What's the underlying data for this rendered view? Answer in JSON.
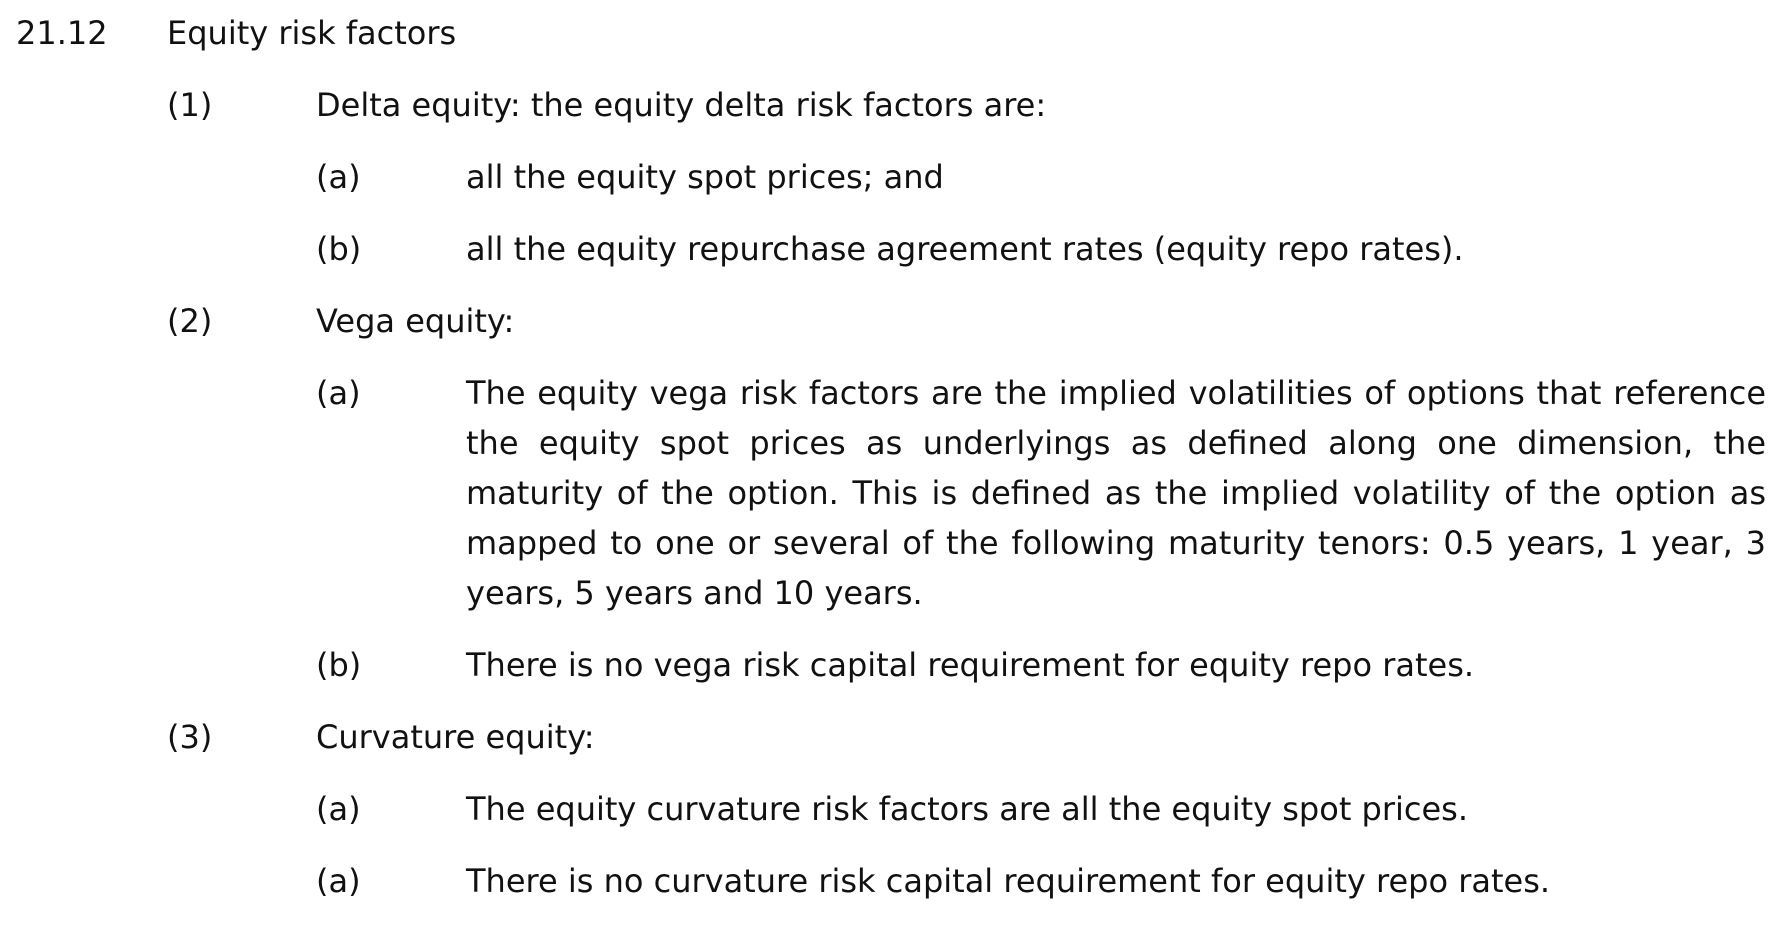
{
  "section": {
    "number": "21.12",
    "title": "Equity risk factors"
  },
  "items": [
    {
      "num": "(1)",
      "text": "Delta equity: the equity delta risk factors are:",
      "subitems": [
        {
          "num": "(a)",
          "text": "all the equity spot prices; and"
        },
        {
          "num": "(b)",
          "text": "all the equity repurchase agreement rates (equity repo rates)."
        }
      ]
    },
    {
      "num": "(2)",
      "text": "Vega equity:",
      "subitems": [
        {
          "num": "(a)",
          "text": "The equity vega risk factors are the implied volatilities of options that reference the equity spot prices as underlyings as defined along one dimension, the maturity of the option. This is defined as the implied volatility of the option as mapped to one or several of the following maturity tenors: 0.5 years, 1 year, 3 years, 5 years and 10 years."
        },
        {
          "num": "(b)",
          "text": "There is no vega risk capital requirement for equity repo rates."
        }
      ]
    },
    {
      "num": "(3)",
      "text": "Curvature equity:",
      "subitems": [
        {
          "num": "(a)",
          "text": "The equity curvature risk factors are all the equity spot prices."
        },
        {
          "num": "(a)",
          "text": "There is no curvature risk capital requirement for equity repo rates."
        }
      ]
    }
  ]
}
